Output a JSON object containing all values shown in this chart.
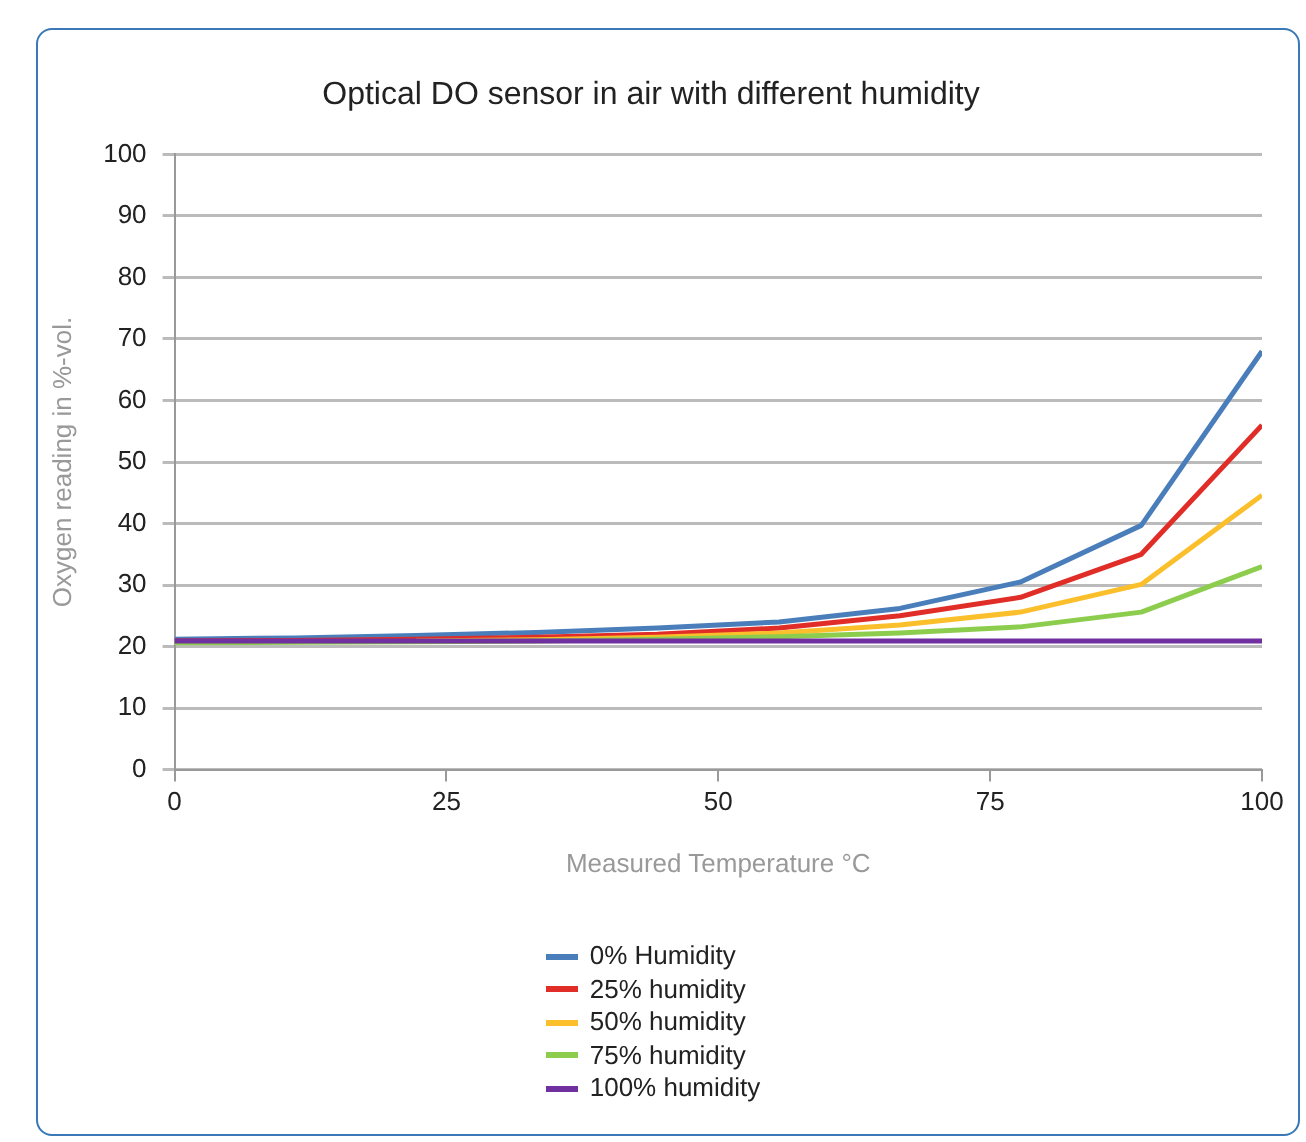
{
  "chart_data": {
    "type": "line",
    "title": "Optical DO sensor in air with different humidity",
    "xlabel": "Measured Temperature °C",
    "ylabel": "Oxygen reading in %-vol.",
    "x": [
      0,
      11.1,
      22.2,
      33.3,
      44.4,
      55.6,
      66.7,
      77.8,
      88.9,
      100
    ],
    "series": [
      {
        "name": "0% Humidity",
        "color": "#4a7ebb",
        "values": [
          21.2,
          21.4,
          21.8,
          22.3,
          23,
          24,
          26.2,
          30.5,
          39.7,
          68
        ]
      },
      {
        "name": "25% humidity",
        "color": "#e02d27",
        "values": [
          20.9,
          21,
          21.2,
          21.5,
          22,
          23,
          25,
          28,
          35,
          56
        ]
      },
      {
        "name": "50% humidity",
        "color": "#fbbf2b",
        "values": [
          null,
          null,
          20.9,
          21.1,
          21.5,
          22.2,
          23.5,
          25.6,
          30.1,
          44.6
        ]
      },
      {
        "name": "75% humidity",
        "color": "#8ccd4e",
        "values": [
          20.6,
          20.7,
          20.8,
          20.9,
          21.2,
          21.6,
          22.2,
          23.2,
          25.6,
          33
        ]
      },
      {
        "name": "100% humidity",
        "color": "#7030a0",
        "values": [
          20.9,
          20.9,
          20.9,
          20.9,
          20.9,
          20.9,
          20.9,
          20.9,
          20.9,
          20.9
        ]
      }
    ],
    "xlim": [
      0,
      100
    ],
    "xticks": [
      0,
      25,
      50,
      75,
      100
    ],
    "ylim": [
      0,
      100
    ],
    "yticks": [
      0,
      10,
      20,
      30,
      40,
      50,
      60,
      70,
      80,
      90,
      100
    ],
    "grid": "y",
    "legend": "bottom",
    "marker": "none",
    "line_style": "solid"
  }
}
